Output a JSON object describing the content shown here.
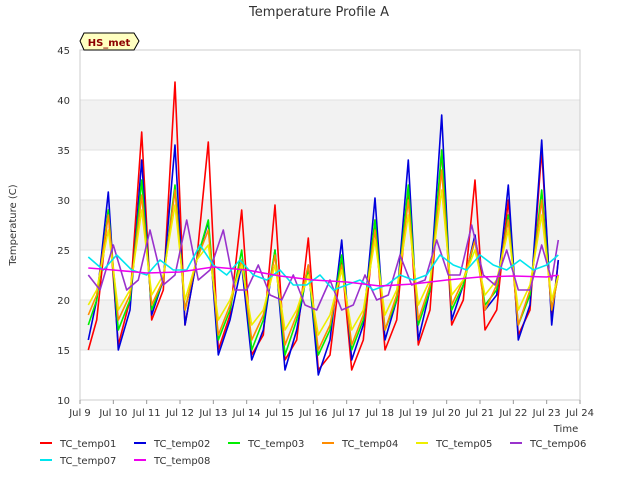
{
  "chart_data": {
    "type": "line",
    "title": "Temperature Profile A",
    "xlabel": "Time",
    "ylabel": "Temperature (C)",
    "badge": "HS_met",
    "ylim": [
      10,
      45
    ],
    "xlim": [
      9,
      24
    ],
    "yticks": [
      10,
      15,
      20,
      25,
      30,
      35,
      40,
      45
    ],
    "xticks": [
      {
        "v": 9,
        "label": "Jul 9"
      },
      {
        "v": 10,
        "label": "Jul 10"
      },
      {
        "v": 11,
        "label": "Jul 11"
      },
      {
        "v": 12,
        "label": "Jul 12"
      },
      {
        "v": 13,
        "label": "Jul 13"
      },
      {
        "v": 14,
        "label": "Jul 14"
      },
      {
        "v": 15,
        "label": "Jul 15"
      },
      {
        "v": 16,
        "label": "Jul 16"
      },
      {
        "v": 17,
        "label": "Jul 17"
      },
      {
        "v": 18,
        "label": "Jul 18"
      },
      {
        "v": 19,
        "label": "Jul 19"
      },
      {
        "v": 20,
        "label": "Jul 20"
      },
      {
        "v": 21,
        "label": "Jul 21"
      },
      {
        "v": 22,
        "label": "Jul 22"
      },
      {
        "v": 23,
        "label": "Jul 23"
      },
      {
        "v": 24,
        "label": "Jul 24"
      }
    ],
    "grid": true,
    "legend": "bottom",
    "series": [
      {
        "name": "TC_temp01",
        "color": "#ff0000",
        "x": [
          9.25,
          9.5,
          9.85,
          10.15,
          10.5,
          10.85,
          11.15,
          11.5,
          11.85,
          12.15,
          12.5,
          12.85,
          13.15,
          13.5,
          13.85,
          14.15,
          14.5,
          14.85,
          15.15,
          15.5,
          15.85,
          16.15,
          16.5,
          16.85,
          17.15,
          17.5,
          17.85,
          18.15,
          18.5,
          18.85,
          19.15,
          19.5,
          19.85,
          20.15,
          20.5,
          20.85,
          21.15,
          21.5,
          21.85,
          22.15,
          22.5,
          22.85,
          23.15,
          23.35
        ],
        "y": [
          15.0,
          18.0,
          29.0,
          15.5,
          20.0,
          36.8,
          18.0,
          21.0,
          41.8,
          17.5,
          24.0,
          35.8,
          15.0,
          18.5,
          29.0,
          14.5,
          16.5,
          29.5,
          14.0,
          16.0,
          26.2,
          13.0,
          14.5,
          24.0,
          13.0,
          16.0,
          28.0,
          15.0,
          18.0,
          31.0,
          15.5,
          19.0,
          35.0,
          17.5,
          20.0,
          32.0,
          17.0,
          19.0,
          30.0,
          16.5,
          19.0,
          35.0,
          18.0,
          24.0
        ]
      },
      {
        "name": "TC_temp02",
        "color": "#0000dd",
        "x": [
          9.25,
          9.5,
          9.85,
          10.15,
          10.5,
          10.85,
          11.15,
          11.5,
          11.85,
          12.15,
          12.5,
          12.85,
          13.15,
          13.5,
          13.85,
          14.15,
          14.5,
          14.85,
          15.15,
          15.5,
          15.85,
          16.15,
          16.5,
          16.85,
          17.15,
          17.5,
          17.85,
          18.15,
          18.5,
          18.85,
          19.15,
          19.5,
          19.85,
          20.15,
          20.5,
          20.85,
          21.15,
          21.5,
          21.85,
          22.15,
          22.5,
          22.85,
          23.15,
          23.35
        ],
        "y": [
          16.0,
          20.0,
          30.8,
          15.0,
          19.0,
          34.0,
          18.5,
          22.0,
          35.5,
          17.5,
          24.0,
          27.8,
          14.5,
          18.0,
          23.5,
          14.0,
          17.0,
          25.0,
          13.0,
          17.0,
          23.5,
          12.5,
          16.0,
          26.0,
          14.0,
          17.5,
          30.2,
          16.0,
          20.0,
          34.0,
          16.0,
          21.0,
          38.5,
          18.0,
          21.5,
          26.5,
          19.0,
          20.5,
          31.5,
          16.0,
          19.5,
          36.0,
          17.5,
          24.0
        ]
      },
      {
        "name": "TC_temp03",
        "color": "#00ee00",
        "x": [
          9.25,
          9.5,
          9.85,
          10.15,
          10.5,
          10.85,
          11.15,
          11.5,
          11.85,
          12.15,
          12.5,
          12.85,
          13.15,
          13.5,
          13.85,
          14.15,
          14.5,
          14.85,
          15.15,
          15.5,
          15.85,
          16.15,
          16.5,
          16.85,
          17.15,
          17.5,
          17.85,
          18.15,
          18.5,
          18.85,
          19.15,
          19.5,
          19.85,
          20.15,
          20.5,
          20.85,
          21.15,
          21.5,
          21.85,
          22.15,
          22.5,
          22.85,
          23.15,
          23.35
        ],
        "y": [
          17.5,
          20.0,
          29.0,
          17.0,
          20.0,
          32.0,
          19.0,
          22.0,
          31.5,
          19.0,
          24.0,
          28.0,
          16.0,
          19.0,
          25.0,
          15.0,
          18.0,
          25.0,
          14.5,
          18.0,
          23.0,
          14.5,
          17.0,
          24.5,
          15.0,
          18.0,
          28.0,
          17.0,
          20.0,
          31.5,
          17.5,
          21.0,
          35.0,
          19.0,
          21.5,
          26.0,
          19.5,
          21.0,
          28.5,
          17.5,
          20.5,
          31.0,
          19.0,
          22.5
        ]
      },
      {
        "name": "TC_temp04",
        "color": "#ff8c00",
        "x": [
          9.25,
          9.5,
          9.85,
          10.15,
          10.5,
          10.85,
          11.15,
          11.5,
          11.85,
          12.15,
          12.5,
          12.85,
          13.15,
          13.5,
          13.85,
          14.15,
          14.5,
          14.85,
          15.15,
          15.5,
          15.85,
          16.15,
          16.5,
          16.85,
          17.15,
          17.5,
          17.85,
          18.15,
          18.5,
          18.85,
          19.15,
          19.5,
          19.85,
          20.15,
          20.5,
          20.85,
          21.15,
          21.5,
          21.85,
          22.15,
          22.5,
          22.85,
          23.15,
          23.35
        ],
        "y": [
          18.5,
          20.5,
          28.5,
          18.0,
          20.5,
          30.5,
          19.5,
          22.0,
          31.0,
          19.0,
          24.0,
          27.0,
          16.5,
          19.5,
          24.0,
          16.0,
          18.5,
          24.5,
          15.5,
          18.5,
          23.5,
          15.0,
          17.5,
          23.5,
          15.5,
          18.5,
          27.0,
          17.0,
          20.5,
          30.0,
          18.0,
          21.5,
          33.0,
          19.5,
          22.0,
          26.0,
          19.0,
          21.5,
          28.0,
          17.5,
          21.0,
          30.0,
          19.0,
          22.5
        ]
      },
      {
        "name": "TC_temp05",
        "color": "#eeee00",
        "x": [
          9.25,
          9.5,
          9.85,
          10.15,
          10.5,
          10.85,
          11.15,
          11.5,
          11.85,
          12.15,
          12.5,
          12.85,
          13.15,
          13.5,
          13.85,
          14.15,
          14.5,
          14.85,
          15.15,
          15.5,
          15.85,
          16.15,
          16.5,
          16.85,
          17.15,
          17.5,
          17.85,
          18.15,
          18.5,
          18.85,
          19.15,
          19.5,
          19.85,
          20.15,
          20.5,
          20.85,
          21.15,
          21.5,
          21.85,
          22.15,
          22.5,
          22.85,
          23.15,
          23.35
        ],
        "y": [
          19.5,
          21.0,
          27.0,
          19.0,
          21.0,
          29.0,
          20.5,
          22.5,
          29.5,
          20.0,
          24.0,
          25.5,
          18.0,
          20.0,
          23.5,
          17.5,
          19.0,
          23.5,
          17.0,
          19.0,
          22.5,
          16.5,
          18.5,
          23.0,
          17.0,
          19.0,
          26.0,
          18.5,
          21.0,
          28.5,
          19.5,
          22.0,
          31.0,
          20.5,
          22.0,
          25.0,
          20.5,
          22.0,
          27.0,
          19.0,
          21.5,
          28.5,
          20.0,
          22.5
        ]
      },
      {
        "name": "TC_temp06",
        "color": "#9932cc",
        "x": [
          9.25,
          9.6,
          10.0,
          10.4,
          10.75,
          11.1,
          11.5,
          11.85,
          12.2,
          12.55,
          12.9,
          13.3,
          13.65,
          14.0,
          14.35,
          14.7,
          15.05,
          15.4,
          15.75,
          16.1,
          16.5,
          16.85,
          17.2,
          17.55,
          17.9,
          18.25,
          18.6,
          18.95,
          19.35,
          19.7,
          20.05,
          20.4,
          20.75,
          21.1,
          21.45,
          21.8,
          22.15,
          22.5,
          22.85,
          23.15,
          23.35
        ],
        "y": [
          22.5,
          21.0,
          25.5,
          21.0,
          22.0,
          27.0,
          21.5,
          22.5,
          28.0,
          22.0,
          23.0,
          27.0,
          21.0,
          21.0,
          23.5,
          20.5,
          20.0,
          22.5,
          19.5,
          19.0,
          22.0,
          19.0,
          19.5,
          22.5,
          20.0,
          20.5,
          24.5,
          21.5,
          22.0,
          26.0,
          22.5,
          22.5,
          27.5,
          22.5,
          21.5,
          25.0,
          21.0,
          21.0,
          25.5,
          22.0,
          26.0
        ]
      },
      {
        "name": "TC_temp07",
        "color": "#00e5ee",
        "x": [
          9.25,
          9.7,
          10.1,
          10.55,
          11.0,
          11.4,
          11.8,
          12.2,
          12.6,
          13.0,
          13.4,
          13.8,
          14.2,
          14.6,
          15.0,
          15.4,
          15.8,
          16.2,
          16.6,
          17.0,
          17.4,
          17.8,
          18.2,
          18.6,
          19.0,
          19.4,
          19.8,
          20.2,
          20.6,
          21.0,
          21.4,
          21.8,
          22.2,
          22.6,
          23.0,
          23.35
        ],
        "y": [
          24.3,
          23.0,
          24.5,
          23.0,
          22.5,
          24.0,
          23.0,
          23.0,
          25.5,
          23.5,
          22.5,
          24.0,
          22.5,
          22.0,
          23.0,
          21.5,
          21.5,
          22.5,
          21.0,
          21.5,
          22.0,
          21.0,
          21.5,
          22.5,
          22.0,
          22.5,
          24.5,
          23.5,
          23.0,
          24.5,
          23.5,
          23.0,
          24.0,
          23.0,
          23.5,
          24.5
        ]
      },
      {
        "name": "TC_temp08",
        "color": "#ee00ee",
        "x": [
          9.25,
          10.0,
          11.0,
          12.0,
          13.0,
          14.0,
          15.0,
          16.0,
          17.0,
          18.0,
          19.0,
          20.0,
          21.0,
          22.0,
          23.0,
          23.35
        ],
        "y": [
          23.2,
          23.0,
          22.7,
          22.8,
          23.3,
          23.0,
          22.4,
          22.0,
          21.8,
          21.4,
          21.6,
          22.0,
          22.3,
          22.4,
          22.3,
          22.5
        ]
      }
    ]
  }
}
